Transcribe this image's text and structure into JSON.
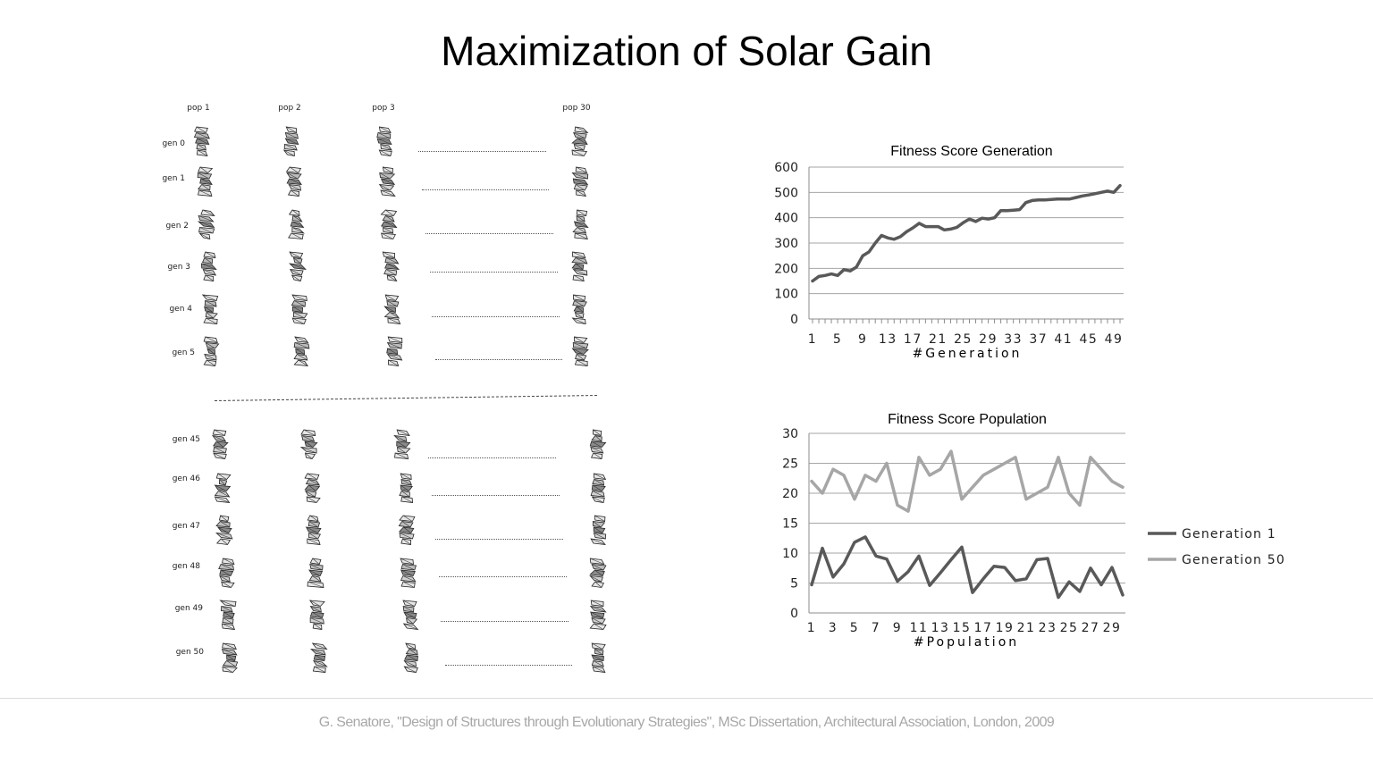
{
  "page": {
    "title": "Maximization of Solar Gain",
    "footer": "G. Senatore, \"Design of Structures through Evolutionary Strategies\", MSc Dissertation, Architectural Association, London, 2009"
  },
  "population_grid": {
    "columns": [
      "pop 1",
      "pop 2",
      "pop 3",
      "pop 30"
    ],
    "rows_top": [
      "gen 0",
      "gen 1",
      "gen 2",
      "gen 3",
      "gen 4",
      "gen 5"
    ],
    "rows_bottom": [
      "gen 45",
      "gen 46",
      "gen 47",
      "gen 48",
      "gen 49",
      "gen 50"
    ]
  },
  "chart_data": [
    {
      "type": "line",
      "title": "Fitness Score Generation",
      "xlabel": "#Generation",
      "ylabel": "",
      "ylim": [
        0,
        600
      ],
      "yticks": [
        0,
        100,
        200,
        300,
        400,
        500,
        600
      ],
      "xtick_labels": [
        "1",
        "5",
        "9",
        "13",
        "17",
        "21",
        "25",
        "29",
        "33",
        "37",
        "41",
        "45",
        "49"
      ],
      "grid": true,
      "legend": "none",
      "x": [
        1,
        2,
        3,
        4,
        5,
        6,
        7,
        8,
        9,
        10,
        11,
        12,
        13,
        14,
        15,
        16,
        17,
        18,
        19,
        20,
        21,
        22,
        23,
        24,
        25,
        26,
        27,
        28,
        29,
        30,
        31,
        32,
        33,
        34,
        35,
        36,
        37,
        38,
        39,
        40,
        41,
        42,
        43,
        44,
        45,
        46,
        47,
        48,
        49,
        50
      ],
      "series": [
        {
          "color": "#595959",
          "values": [
            150,
            168,
            172,
            178,
            172,
            195,
            190,
            205,
            250,
            265,
            300,
            330,
            320,
            315,
            325,
            345,
            360,
            378,
            365,
            365,
            365,
            352,
            355,
            362,
            380,
            395,
            385,
            398,
            395,
            400,
            428,
            428,
            430,
            432,
            460,
            468,
            470,
            470,
            472,
            474,
            474,
            474,
            480,
            486,
            490,
            495,
            500,
            505,
            500,
            527
          ]
        }
      ]
    },
    {
      "type": "line",
      "title": "Fitness Score Population",
      "xlabel": "#Population",
      "ylabel": "",
      "ylim": [
        0,
        30
      ],
      "yticks": [
        0,
        5,
        10,
        15,
        20,
        25,
        30
      ],
      "xtick_labels": [
        "1",
        "3",
        "5",
        "7",
        "9",
        "11",
        "13",
        "15",
        "17",
        "19",
        "21",
        "23",
        "25",
        "27",
        "29"
      ],
      "grid": true,
      "legend": "right",
      "x": [
        1,
        2,
        3,
        4,
        5,
        6,
        7,
        8,
        9,
        10,
        11,
        12,
        13,
        14,
        15,
        16,
        17,
        18,
        19,
        20,
        21,
        22,
        23,
        24,
        25,
        26,
        27,
        28,
        29,
        30
      ],
      "series": [
        {
          "name": "Generation 1",
          "color": "#595959",
          "values": [
            4.7,
            10.8,
            6,
            8.2,
            11.8,
            12.7,
            9.5,
            9,
            5.3,
            6.9,
            9.5,
            4.6,
            6.7,
            8.9,
            11,
            3.4,
            5.7,
            7.8,
            7.6,
            5.4,
            5.7,
            8.9,
            9.1,
            2.6,
            5.2,
            3.6,
            7.5,
            4.7,
            7.6,
            3
          ]
        },
        {
          "name": "Generation 50",
          "color": "#a6a6a6",
          "values": [
            22,
            20,
            24,
            23,
            19,
            23,
            22,
            25,
            18,
            17,
            26,
            23,
            24,
            27,
            19,
            21,
            23,
            24,
            25,
            26,
            19,
            20,
            21,
            26,
            20,
            18,
            26,
            24,
            22,
            21
          ]
        }
      ]
    }
  ]
}
